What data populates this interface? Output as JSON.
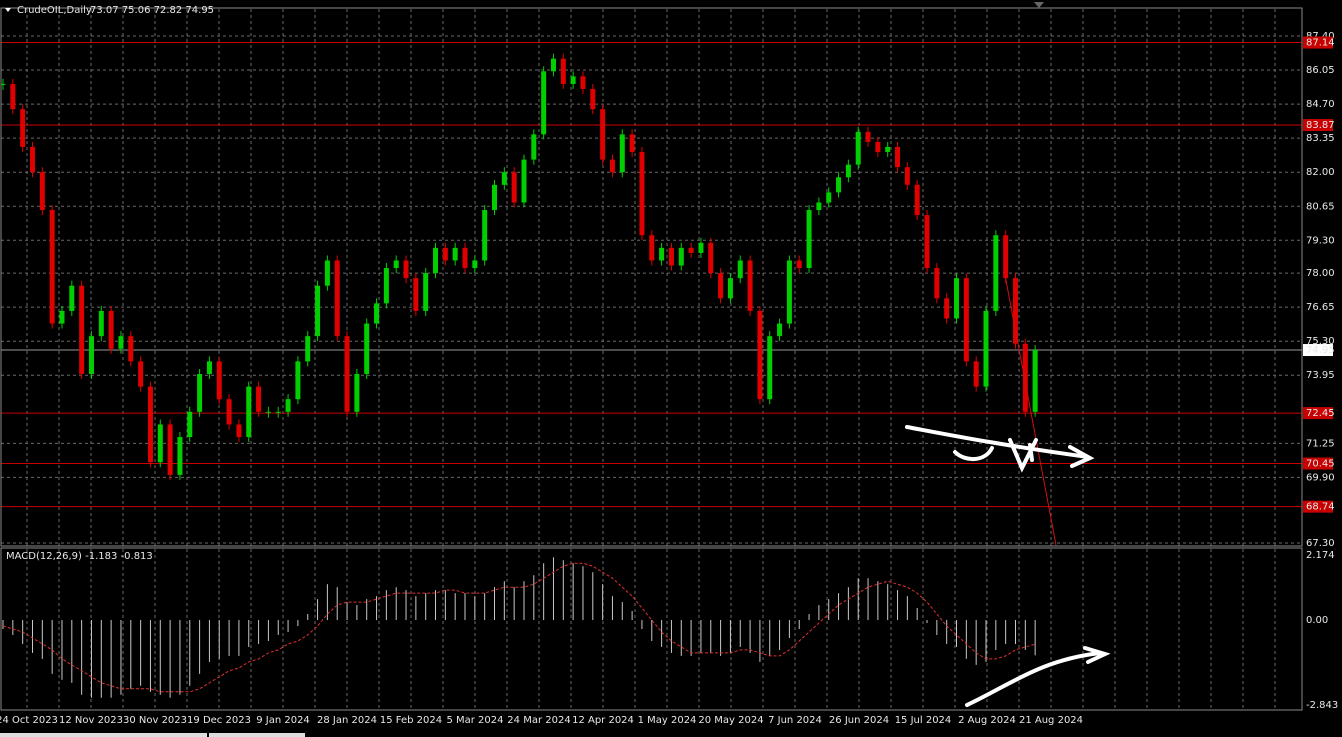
{
  "chart_data": [
    {
      "type": "candlestick",
      "title": "CrudeOIL,Daily",
      "quote": "73.07 75.06 72.82 74.95",
      "x_labels": [
        "24 Oct 2023",
        "12 Nov 2023",
        "30 Nov 2023",
        "19 Dec 2023",
        "9 Jan 2024",
        "28 Jan 2024",
        "15 Feb 2024",
        "5 Mar 2024",
        "24 Mar 2024",
        "12 Apr 2024",
        "1 May 2024",
        "20 May 2024",
        "7 Jun 2024",
        "26 Jun 2024",
        "15 Jul 2024",
        "2 Aug 2024",
        "21 Aug 2024"
      ],
      "values": [
        85.5,
        84.5,
        83,
        82,
        80.5,
        76,
        76.5,
        77.5,
        74,
        75.5,
        76.5,
        75,
        75.5,
        74.5,
        73.5,
        70.5,
        72,
        70,
        71.5,
        72.5,
        74,
        74.5,
        73,
        72,
        71.5,
        73.5,
        72.5,
        72.5,
        72.5,
        73,
        74.5,
        75.5,
        77.5,
        78.5,
        75.5,
        72.5,
        74,
        76,
        76.8,
        78.2,
        78.5,
        77.8,
        76.5,
        78,
        79,
        78.5,
        79,
        78.2,
        78.5,
        80.5,
        81.5,
        82,
        80.8,
        82.5,
        83.5,
        86,
        86.5,
        85.5,
        85.8,
        85.3,
        84.5,
        82.5,
        82,
        83.5,
        82.8,
        79.5,
        78.5,
        79,
        78.3,
        79,
        78.8,
        79.2,
        78,
        77,
        77.8,
        78.5,
        76.5,
        73,
        75.5,
        76,
        78.5,
        78.2,
        80.5,
        80.8,
        81.2,
        81.8,
        82.3,
        83.6,
        83.2,
        82.8,
        83,
        82.2,
        81.5,
        80.3,
        78.2,
        77,
        76.2,
        77.8,
        74.5,
        73.5,
        76.5,
        79.5,
        77.8,
        75.2,
        72.5,
        74.95
      ],
      "up_color": "#00d000",
      "down_color": "#e00000",
      "ylim": [
        67.22,
        88.51
      ],
      "yticks": [
        {
          "value": 87.4,
          "label": "87.40"
        },
        86.05,
        {
          "value": 84.7,
          "label": "84.70"
        },
        83.35,
        {
          "value": 82,
          "label": "82.00"
        },
        80.65,
        {
          "value": 79.3,
          "label": "79.30"
        },
        {
          "value": 78,
          "label": "78.00"
        },
        76.65,
        {
          "value": 75.3,
          "label": "75.30"
        },
        73.95,
        71.25,
        {
          "value": 69.9,
          "label": "69.90"
        },
        {
          "value": 67.3,
          "label": "67.30"
        }
      ],
      "levels": [
        87.14,
        83.87,
        72.45,
        70.45,
        68.74
      ],
      "level_color": "#c80000",
      "last_price": 74.95,
      "grid": true
    },
    {
      "type": "macd",
      "title": "MACD(12,26,9) -1.183 -0.813",
      "series": [
        {
          "color": "#c8c8c8",
          "values": [
            -0.3,
            -0.5,
            -0.8,
            -1.1,
            -1.3,
            -1.8,
            -2.0,
            -2.1,
            -2.5,
            -2.6,
            -2.6,
            -2.6,
            -2.5,
            -2.3,
            -2.2,
            -2.4,
            -2.5,
            -2.6,
            -2.5,
            -2.2,
            -1.8,
            -1.4,
            -1.3,
            -1.2,
            -1.2,
            -0.9,
            -0.8,
            -0.7,
            -0.5,
            -0.4,
            -0.2,
            0.2,
            0.7,
            1.2,
            1.1,
            0.6,
            0.5,
            0.7,
            0.8,
            1.0,
            1.1,
            1.0,
            0.8,
            0.9,
            1.0,
            1.0,
            0.9,
            0.9,
            0.8,
            0.9,
            1.1,
            1.3,
            1.1,
            1.3,
            1.5,
            1.9,
            2.1,
            2.0,
            1.9,
            1.8,
            1.6,
            1.2,
            0.8,
            0.6,
            0.3,
            -0.3,
            -0.7,
            -0.9,
            -1.1,
            -1.2,
            -1.2,
            -1.1,
            -1.1,
            -1.2,
            -1.1,
            -0.9,
            -1.1,
            -1.4,
            -1.2,
            -1.0,
            -0.6,
            -0.3,
            0.2,
            0.5,
            0.7,
            0.9,
            1.1,
            1.4,
            1.4,
            1.3,
            1.2,
            1.0,
            0.8,
            0.4,
            -0.1,
            -0.5,
            -0.8,
            -0.9,
            -1.3,
            -1.5,
            -1.4,
            -1.0,
            -0.8,
            -0.8,
            -1.0,
            -1.183
          ]
        },
        {
          "color": "#e03030",
          "values": [
            -0.2,
            -0.3,
            -0.4,
            -0.6,
            -0.8,
            -1.0,
            -1.3,
            -1.5,
            -1.7,
            -1.9,
            -2.1,
            -2.2,
            -2.3,
            -2.3,
            -2.3,
            -2.3,
            -2.4,
            -2.4,
            -2.4,
            -2.4,
            -2.3,
            -2.1,
            -1.9,
            -1.7,
            -1.6,
            -1.4,
            -1.3,
            -1.1,
            -1.0,
            -0.8,
            -0.7,
            -0.5,
            -0.2,
            0.2,
            0.5,
            0.6,
            0.6,
            0.6,
            0.7,
            0.8,
            0.9,
            0.9,
            0.9,
            0.9,
            0.9,
            1.0,
            1.0,
            0.9,
            0.9,
            0.9,
            1.0,
            1.1,
            1.1,
            1.1,
            1.2,
            1.4,
            1.6,
            1.8,
            1.9,
            1.9,
            1.8,
            1.6,
            1.4,
            1.1,
            0.8,
            0.4,
            0.0,
            -0.4,
            -0.7,
            -0.9,
            -1.1,
            -1.1,
            -1.1,
            -1.1,
            -1.1,
            -1.0,
            -1.0,
            -1.1,
            -1.2,
            -1.2,
            -1.0,
            -0.7,
            -0.4,
            -0.1,
            0.2,
            0.5,
            0.7,
            0.9,
            1.1,
            1.2,
            1.3,
            1.2,
            1.1,
            0.9,
            0.6,
            0.2,
            -0.2,
            -0.5,
            -0.8,
            -1.1,
            -1.3,
            -1.3,
            -1.2,
            -1.0,
            -0.9,
            -0.813
          ]
        }
      ],
      "ylim": [
        -3.01,
        2.41
      ],
      "yticks": [
        2.174,
        {
          "value": 0,
          "label": "0.00"
        },
        -2.843
      ]
    }
  ]
}
